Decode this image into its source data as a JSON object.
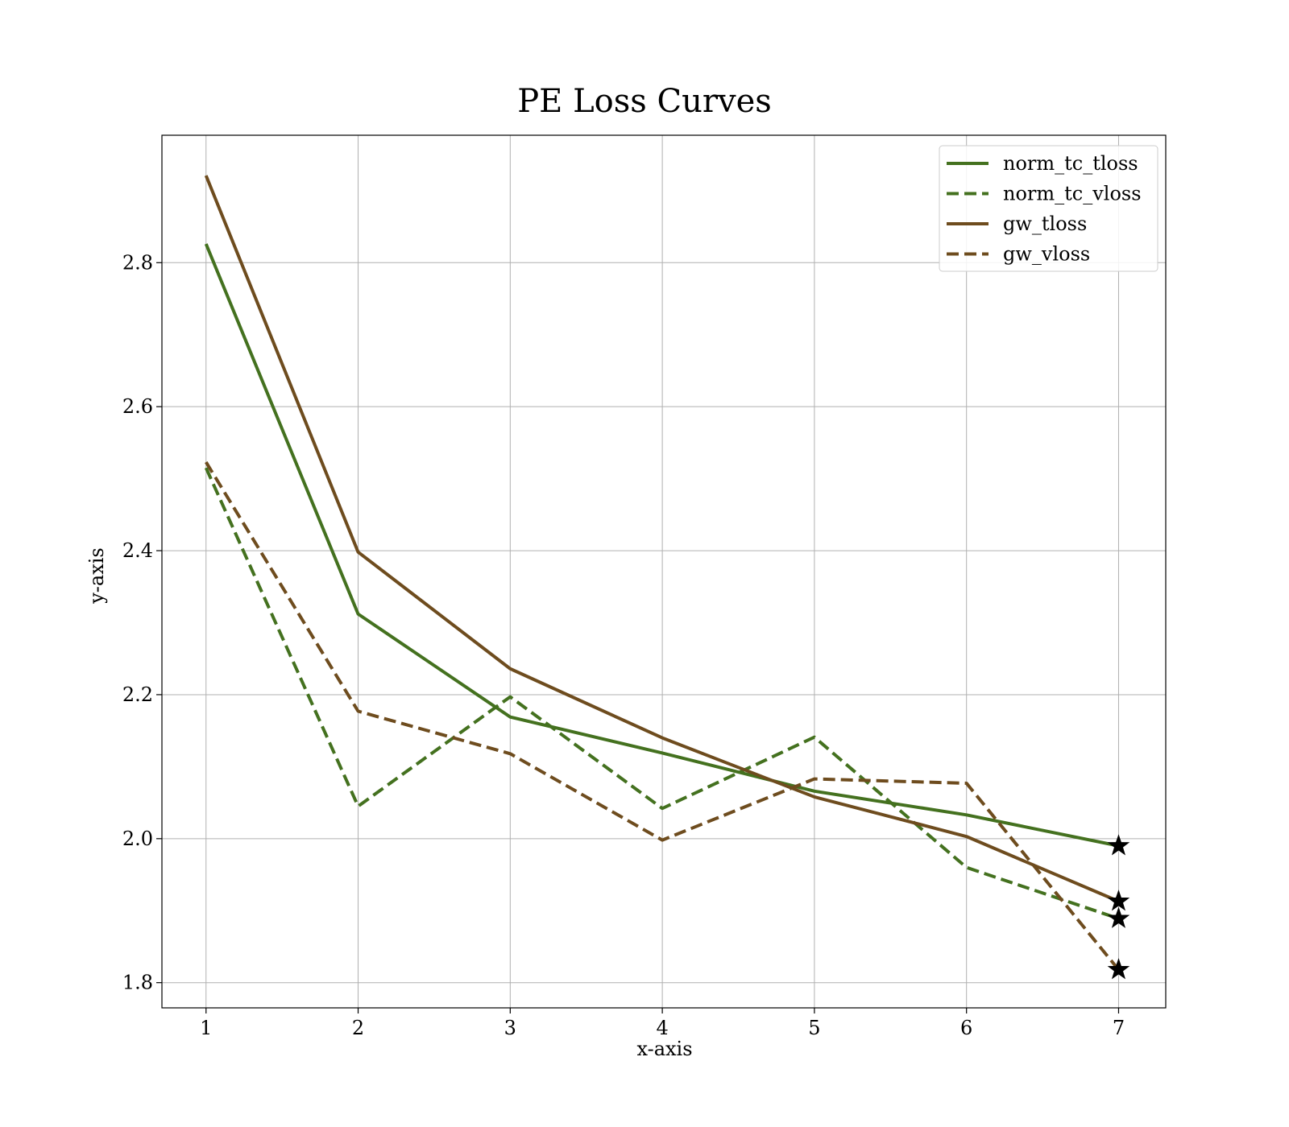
{
  "chart_data": {
    "type": "line",
    "title": "PE Loss Curves",
    "xlabel": "x-axis",
    "ylabel": "y-axis",
    "xlim": [
      0.71,
      7.31
    ],
    "ylim": [
      1.765,
      2.977
    ],
    "xticks": [
      1,
      2,
      3,
      4,
      5,
      6,
      7
    ],
    "yticks": [
      1.8,
      2.0,
      2.2,
      2.4,
      2.6,
      2.8
    ],
    "grid": true,
    "legend_position": "top-right",
    "x": [
      1,
      2,
      3,
      4,
      5,
      6,
      7
    ],
    "series": [
      {
        "name": "norm_tc_tloss",
        "color": "#44711f",
        "style": "solid",
        "values": [
          2.826,
          2.312,
          2.169,
          2.119,
          2.066,
          2.033,
          1.99
        ]
      },
      {
        "name": "norm_tc_vloss",
        "color": "#44711f",
        "style": "dashed",
        "values": [
          2.515,
          2.045,
          2.197,
          2.042,
          2.141,
          1.96,
          1.889
        ]
      },
      {
        "name": "gw_tloss",
        "color": "#6e4c1e",
        "style": "solid",
        "values": [
          2.921,
          2.398,
          2.236,
          2.14,
          2.058,
          2.003,
          1.913
        ]
      },
      {
        "name": "gw_vloss",
        "color": "#6e4c1e",
        "style": "dashed",
        "values": [
          2.523,
          2.177,
          2.118,
          1.998,
          2.083,
          2.077,
          1.818
        ]
      }
    ],
    "end_markers": {
      "shape": "star",
      "color": "#000000",
      "at": "last point of each series"
    }
  }
}
